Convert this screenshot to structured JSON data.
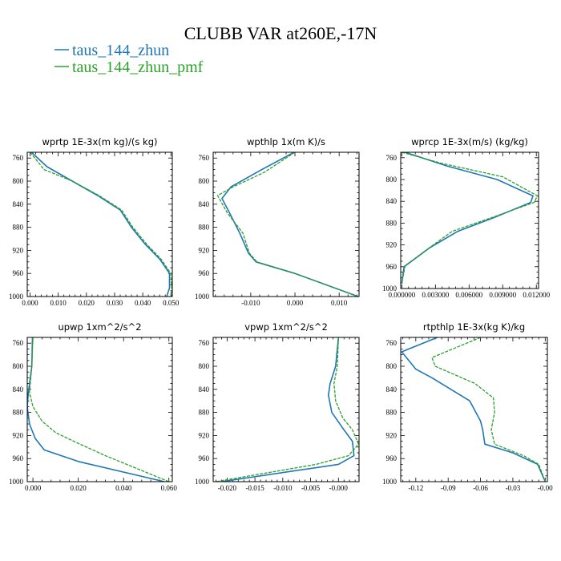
{
  "title": "CLUBB VAR at260E,-17N",
  "legend": [
    {
      "label": "taus_144_zhun",
      "color": "#1f77b4"
    },
    {
      "label": "taus_144_zhun_pmf",
      "color": "#2ca02c"
    }
  ],
  "chart_data": [
    {
      "type": "line",
      "title": "wprtp  1E-3x(m kg)/(s kg)",
      "xlim": [
        -0.001,
        0.0505
      ],
      "ylim": [
        1000,
        750
      ],
      "xticks": [
        0.0,
        0.01,
        0.02,
        0.03,
        0.04,
        0.05
      ],
      "xtick_labels": [
        "0.000",
        "0.010",
        "0.020",
        "0.030",
        "0.040",
        "0.050"
      ],
      "yticks": [
        760,
        800,
        840,
        880,
        920,
        960,
        1000
      ],
      "series": [
        {
          "name": "taus_144_zhun",
          "x": [
            0.0005,
            0.006,
            0.015,
            0.024,
            0.032,
            0.036,
            0.041,
            0.046,
            0.0495,
            0.0495,
            0.0485
          ],
          "y": [
            750,
            775,
            800,
            825,
            850,
            880,
            910,
            935,
            960,
            985,
            1000
          ]
        },
        {
          "name": "taus_144_zhun_pmf",
          "x": [
            0.0,
            0.005,
            0.015,
            0.0245,
            0.0325,
            0.0365,
            0.0415,
            0.0465,
            0.05,
            0.0503,
            0.0502
          ],
          "y": [
            750,
            780,
            800,
            825,
            850,
            880,
            910,
            935,
            960,
            985,
            1000
          ]
        }
      ]
    },
    {
      "type": "line",
      "title": "wpthlp  1x(m K)/s",
      "xlim": [
        -0.0185,
        0.0145
      ],
      "ylim": [
        1000,
        750
      ],
      "xticks": [
        -0.01,
        0.0,
        0.01
      ],
      "xtick_labels": [
        "-0.010",
        "0.000",
        "0.010"
      ],
      "yticks": [
        760,
        800,
        840,
        880,
        920,
        960,
        1000
      ],
      "series": [
        {
          "name": "taus_144_zhun",
          "x": [
            -0.0002,
            -0.0075,
            -0.0145,
            -0.0165,
            -0.0148,
            -0.0125,
            -0.0105,
            -0.0088,
            0.0,
            0.0143
          ],
          "y": [
            750,
            780,
            810,
            830,
            855,
            890,
            925,
            940,
            960,
            1000
          ]
        },
        {
          "name": "taus_144_zhun_pmf",
          "x": [
            0.0,
            -0.007,
            -0.014,
            -0.0175,
            -0.0153,
            -0.0118,
            -0.0103,
            -0.0086,
            0.0,
            0.0143
          ],
          "y": [
            750,
            785,
            810,
            825,
            855,
            890,
            925,
            940,
            960,
            1000
          ]
        }
      ]
    },
    {
      "type": "line",
      "title": "wprcp  1E-3x(m/s) (kg/kg)",
      "xlim": [
        -0.0001,
        0.0122
      ],
      "ylim": [
        1000,
        750
      ],
      "xticks": [
        0.0,
        0.003,
        0.006,
        0.009,
        0.012
      ],
      "xtick_labels": [
        "0.000000",
        "0.003000",
        "0.006000",
        "0.009000",
        "0.012000"
      ],
      "yticks": [
        760,
        800,
        840,
        880,
        920,
        960,
        1000
      ],
      "series": [
        {
          "name": "taus_144_zhun",
          "x": [
            0.0003,
            0.004,
            0.0085,
            0.0117,
            0.0115,
            0.0082,
            0.005,
            0.0025,
            0.0002,
            0.0
          ],
          "y": [
            750,
            775,
            800,
            830,
            842,
            870,
            895,
            925,
            960,
            990
          ]
        },
        {
          "name": "taus_144_zhun_pmf",
          "x": [
            0.0,
            0.0035,
            0.009,
            0.0121,
            0.0118,
            0.008,
            0.0045,
            0.0028,
            0.0003,
            0.0
          ],
          "y": [
            750,
            770,
            795,
            830,
            842,
            870,
            895,
            920,
            958,
            990
          ]
        }
      ]
    },
    {
      "type": "line",
      "title": "upwp  1xm^2/s^2",
      "xlim": [
        -0.0025,
        0.0615
      ],
      "ylim": [
        1000,
        750
      ],
      "xticks": [
        0.0,
        0.02,
        0.04,
        0.06
      ],
      "xtick_labels": [
        "0.000",
        "0.020",
        "0.040",
        "0.060"
      ],
      "yticks": [
        760,
        800,
        840,
        880,
        920,
        960,
        1000
      ],
      "series": [
        {
          "name": "taus_144_zhun",
          "x": [
            -0.0002,
            -0.0005,
            -0.002,
            -0.0025,
            -0.0015,
            0.001,
            0.005,
            0.02,
            0.058
          ],
          "y": [
            750,
            800,
            845,
            870,
            900,
            925,
            945,
            965,
            1000
          ]
        },
        {
          "name": "taus_144_zhun_pmf",
          "x": [
            0.0,
            -0.0005,
            -0.0015,
            0.0,
            0.004,
            0.01,
            0.018,
            0.032,
            0.06
          ],
          "y": [
            750,
            800,
            845,
            870,
            895,
            915,
            930,
            955,
            1000
          ]
        }
      ]
    },
    {
      "type": "line",
      "title": "vpwp  1xm^2/s^2",
      "xlim": [
        -0.0225,
        0.0037
      ],
      "ylim": [
        1000,
        750
      ],
      "xticks": [
        -0.02,
        -0.015,
        -0.01,
        -0.005,
        0.0
      ],
      "xtick_labels": [
        "-0.020",
        "-0.015",
        "-0.010",
        "-0.005",
        "-0.000"
      ],
      "yticks": [
        760,
        800,
        840,
        880,
        920,
        960,
        1000
      ],
      "series": [
        {
          "name": "taus_144_zhun",
          "x": [
            0.0,
            -0.0005,
            -0.0015,
            -0.0018,
            -0.0012,
            0.0006,
            0.0025,
            0.0028,
            0.0,
            -0.021
          ],
          "y": [
            750,
            800,
            830,
            850,
            880,
            905,
            930,
            955,
            970,
            1000
          ]
        },
        {
          "name": "taus_144_zhun_pmf",
          "x": [
            0.0,
            -0.0002,
            -0.0008,
            -0.0005,
            0.0008,
            0.0025,
            0.0036,
            0.0018,
            -0.004,
            -0.022
          ],
          "y": [
            750,
            800,
            830,
            860,
            890,
            910,
            935,
            955,
            970,
            1000
          ]
        }
      ]
    },
    {
      "type": "line",
      "title": "rtpthlp  1E-3x(kg K)/kg",
      "xlim": [
        -0.134,
        0.002
      ],
      "ylim": [
        1000,
        750
      ],
      "xticks": [
        -0.12,
        -0.09,
        -0.06,
        -0.03,
        0.0
      ],
      "xtick_labels": [
        "-0.12",
        "-0.09",
        "-0.06",
        "-0.03",
        "-0.00"
      ],
      "yticks": [
        760,
        800,
        840,
        880,
        920,
        960,
        1000
      ],
      "series": [
        {
          "name": "taus_144_zhun",
          "x": [
            -0.1,
            -0.133,
            -0.12,
            -0.105,
            -0.07,
            -0.06,
            -0.058,
            -0.056,
            -0.03,
            -0.007,
            0.0
          ],
          "y": [
            750,
            775,
            805,
            820,
            860,
            895,
            910,
            935,
            950,
            970,
            1000
          ]
        },
        {
          "name": "taus_144_zhun_pmf",
          "x": [
            -0.06,
            -0.105,
            -0.102,
            -0.065,
            -0.048,
            -0.047,
            -0.05,
            -0.047,
            -0.02,
            -0.006,
            0.0
          ],
          "y": [
            750,
            785,
            800,
            830,
            855,
            880,
            910,
            935,
            955,
            970,
            1000
          ]
        }
      ]
    }
  ]
}
